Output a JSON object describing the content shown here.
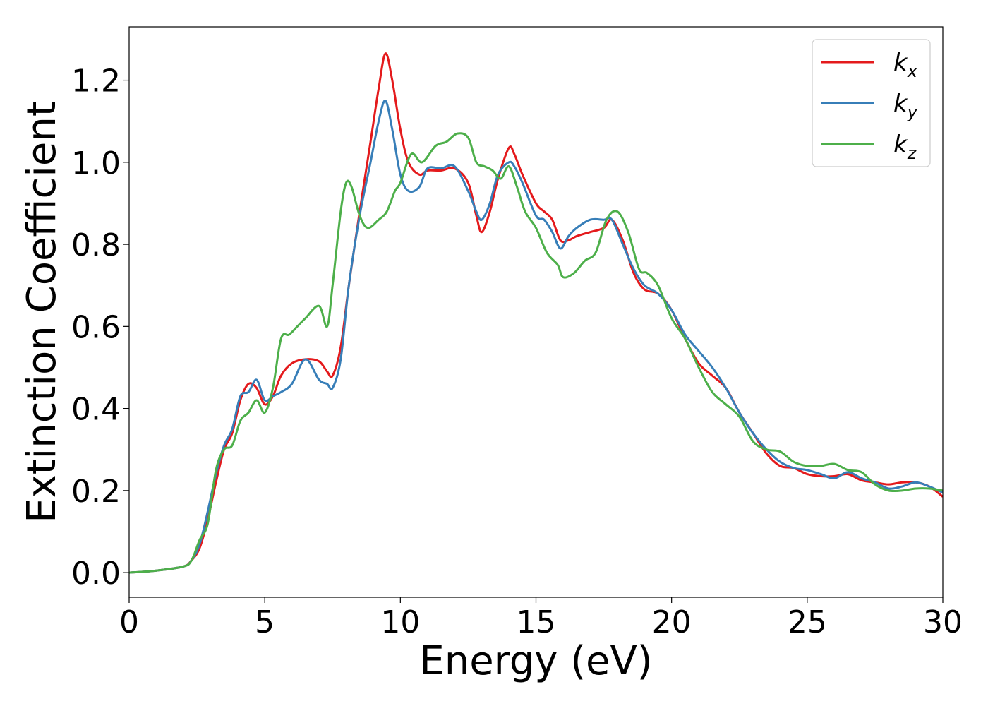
{
  "chart_data": {
    "type": "line",
    "title": "",
    "xlabel": "Energy (eV)",
    "ylabel": "Extinction Coefficient",
    "xlim": [
      0,
      30
    ],
    "ylim": [
      -0.06,
      1.33
    ],
    "xticks": [
      0,
      5,
      10,
      15,
      20,
      25,
      30
    ],
    "xtick_labels": [
      "0",
      "5",
      "10",
      "15",
      "20",
      "25",
      "30"
    ],
    "yticks": [
      0.0,
      0.2,
      0.4,
      0.6,
      0.8,
      1.0,
      1.2
    ],
    "ytick_labels": [
      "0.0",
      "0.2",
      "0.4",
      "0.6",
      "0.8",
      "1.0",
      "1.2"
    ],
    "grid": false,
    "legend_position": "top-right",
    "series": [
      {
        "name": "k",
        "subscript": "x",
        "color": "#e41a1c",
        "x": [
          0,
          1,
          2,
          2.3,
          2.6,
          2.9,
          3.2,
          3.5,
          3.8,
          4.1,
          4.4,
          4.7,
          5.0,
          5.3,
          5.6,
          6.0,
          6.5,
          7.0,
          7.3,
          7.5,
          7.8,
          8.1,
          8.5,
          8.9,
          9.2,
          9.45,
          9.7,
          10.0,
          10.3,
          10.7,
          11.0,
          11.5,
          12.0,
          12.5,
          12.8,
          13.0,
          13.3,
          13.6,
          14.0,
          14.2,
          14.5,
          15.0,
          15.3,
          15.6,
          15.9,
          16.2,
          16.5,
          17.0,
          17.5,
          17.8,
          18.2,
          18.6,
          19.0,
          19.5,
          20.0,
          20.5,
          21.0,
          21.5,
          22.0,
          22.5,
          23.0,
          23.5,
          24.0,
          24.5,
          25.0,
          25.5,
          26.0,
          26.5,
          27.0,
          27.5,
          28.0,
          28.5,
          29.0,
          29.5,
          30.0
        ],
        "y": [
          0.0,
          0.005,
          0.015,
          0.03,
          0.06,
          0.13,
          0.22,
          0.3,
          0.34,
          0.42,
          0.46,
          0.45,
          0.41,
          0.43,
          0.48,
          0.51,
          0.52,
          0.515,
          0.49,
          0.48,
          0.55,
          0.7,
          0.88,
          1.05,
          1.18,
          1.265,
          1.2,
          1.08,
          1.0,
          0.97,
          0.98,
          0.98,
          0.985,
          0.95,
          0.87,
          0.83,
          0.88,
          0.96,
          1.035,
          1.02,
          0.97,
          0.9,
          0.88,
          0.86,
          0.81,
          0.81,
          0.82,
          0.83,
          0.84,
          0.86,
          0.81,
          0.73,
          0.69,
          0.68,
          0.64,
          0.57,
          0.51,
          0.48,
          0.45,
          0.39,
          0.34,
          0.29,
          0.26,
          0.255,
          0.24,
          0.235,
          0.235,
          0.24,
          0.225,
          0.22,
          0.215,
          0.22,
          0.22,
          0.21,
          0.185
        ]
      },
      {
        "name": "k",
        "subscript": "y",
        "color": "#377eb8",
        "x": [
          0,
          1,
          2,
          2.3,
          2.6,
          2.9,
          3.2,
          3.5,
          3.8,
          4.1,
          4.4,
          4.7,
          5.0,
          5.3,
          5.6,
          6.0,
          6.5,
          7.0,
          7.3,
          7.5,
          7.8,
          8.1,
          8.5,
          8.9,
          9.2,
          9.45,
          9.7,
          10.0,
          10.3,
          10.7,
          11.0,
          11.5,
          12.0,
          12.5,
          12.8,
          13.0,
          13.3,
          13.6,
          14.0,
          14.2,
          14.5,
          15.0,
          15.3,
          15.6,
          15.9,
          16.2,
          16.5,
          17.0,
          17.5,
          17.8,
          18.2,
          18.6,
          19.0,
          19.5,
          20.0,
          20.5,
          21.0,
          21.5,
          22.0,
          22.5,
          23.0,
          23.5,
          24.0,
          24.5,
          25.0,
          25.5,
          26.0,
          26.5,
          27.0,
          27.5,
          28.0,
          28.5,
          29.0,
          29.5,
          30.0
        ],
        "y": [
          0.0,
          0.005,
          0.015,
          0.03,
          0.07,
          0.15,
          0.24,
          0.31,
          0.35,
          0.43,
          0.44,
          0.47,
          0.42,
          0.43,
          0.44,
          0.46,
          0.52,
          0.47,
          0.46,
          0.45,
          0.52,
          0.7,
          0.87,
          1.0,
          1.1,
          1.15,
          1.08,
          0.97,
          0.93,
          0.94,
          0.985,
          0.985,
          0.99,
          0.93,
          0.88,
          0.86,
          0.9,
          0.97,
          1.0,
          0.99,
          0.95,
          0.87,
          0.86,
          0.83,
          0.79,
          0.82,
          0.84,
          0.86,
          0.86,
          0.86,
          0.8,
          0.74,
          0.7,
          0.68,
          0.64,
          0.58,
          0.54,
          0.5,
          0.45,
          0.39,
          0.34,
          0.3,
          0.27,
          0.255,
          0.25,
          0.24,
          0.23,
          0.245,
          0.23,
          0.22,
          0.205,
          0.21,
          0.22,
          0.21,
          0.195
        ]
      },
      {
        "name": "k",
        "subscript": "z",
        "color": "#4daf4a",
        "x": [
          0,
          1,
          2,
          2.3,
          2.6,
          2.9,
          3.2,
          3.5,
          3.8,
          4.1,
          4.4,
          4.7,
          5.0,
          5.3,
          5.6,
          5.9,
          6.2,
          6.5,
          7.0,
          7.3,
          7.5,
          7.8,
          8.0,
          8.2,
          8.5,
          8.8,
          9.2,
          9.5,
          9.8,
          10.0,
          10.4,
          10.8,
          11.3,
          11.7,
          12.1,
          12.5,
          12.8,
          13.1,
          13.4,
          13.7,
          14.0,
          14.3,
          14.6,
          15.0,
          15.4,
          15.8,
          16.0,
          16.4,
          16.8,
          17.2,
          17.6,
          18.0,
          18.4,
          18.8,
          19.1,
          19.5,
          20.0,
          20.5,
          21.0,
          21.5,
          22.0,
          22.5,
          23.0,
          23.5,
          24.0,
          24.5,
          25.0,
          25.5,
          26.0,
          26.5,
          27.0,
          27.5,
          28.0,
          28.5,
          29.0,
          29.5,
          30.0
        ],
        "y": [
          0.0,
          0.005,
          0.015,
          0.03,
          0.08,
          0.12,
          0.25,
          0.3,
          0.31,
          0.37,
          0.39,
          0.42,
          0.39,
          0.45,
          0.57,
          0.58,
          0.6,
          0.62,
          0.65,
          0.6,
          0.7,
          0.88,
          0.95,
          0.94,
          0.87,
          0.84,
          0.86,
          0.88,
          0.93,
          0.95,
          1.02,
          1.0,
          1.04,
          1.05,
          1.07,
          1.06,
          1.0,
          0.99,
          0.98,
          0.96,
          0.99,
          0.94,
          0.88,
          0.84,
          0.78,
          0.75,
          0.72,
          0.73,
          0.76,
          0.78,
          0.86,
          0.88,
          0.83,
          0.74,
          0.73,
          0.7,
          0.62,
          0.57,
          0.5,
          0.44,
          0.41,
          0.38,
          0.32,
          0.3,
          0.295,
          0.27,
          0.26,
          0.26,
          0.265,
          0.25,
          0.245,
          0.215,
          0.2,
          0.2,
          0.205,
          0.205,
          0.2
        ]
      }
    ]
  }
}
